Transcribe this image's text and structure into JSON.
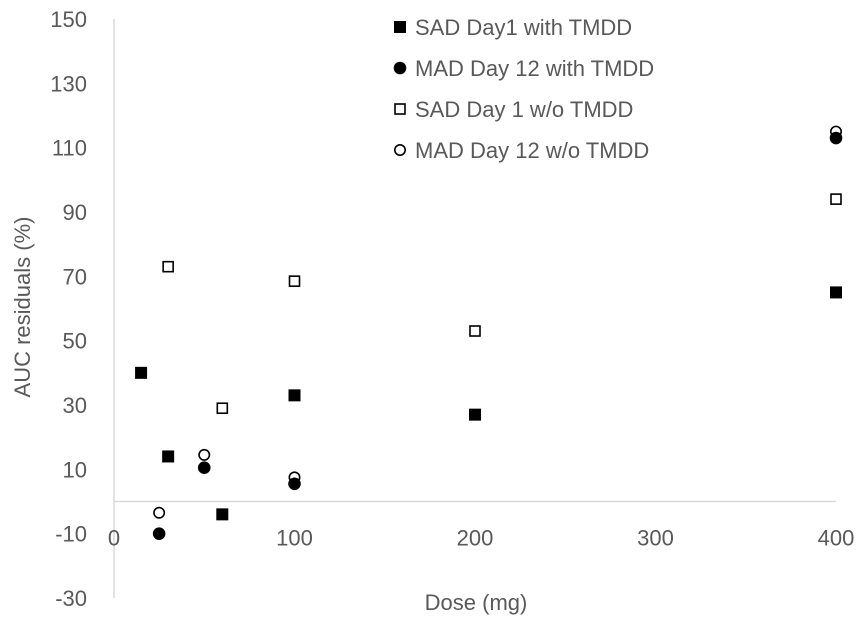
{
  "chart_data": {
    "type": "scatter",
    "title": "",
    "xlabel": "Dose (mg)",
    "ylabel": "AUC residuals (%)",
    "xlim": [
      0,
      400
    ],
    "ylim": [
      -30,
      150
    ],
    "x_ticks": [
      0,
      100,
      200,
      300,
      400
    ],
    "y_ticks": [
      -30,
      -10,
      10,
      30,
      50,
      70,
      90,
      110,
      130,
      150
    ],
    "grid": false,
    "legend_position": "top-right",
    "axis_color": "#d9d9d9",
    "text_color": "#595959",
    "marker_color": "#000000",
    "series": [
      {
        "name": "SAD Day1 with TMDD",
        "marker": "filled-square",
        "x": [
          15,
          30,
          60,
          100,
          200,
          400
        ],
        "y": [
          40,
          14,
          -4,
          33,
          27,
          65
        ]
      },
      {
        "name": "MAD Day 12 with TMDD",
        "marker": "filled-circle",
        "x": [
          25,
          50,
          100,
          400
        ],
        "y": [
          -10,
          10.5,
          5.5,
          113
        ]
      },
      {
        "name": "SAD Day 1 w/o TMDD",
        "marker": "open-square",
        "x": [
          30,
          60,
          100,
          200,
          400
        ],
        "y": [
          73,
          29,
          68.5,
          53,
          94
        ]
      },
      {
        "name": "MAD Day 12 w/o TMDD",
        "marker": "open-circle",
        "x": [
          25,
          50,
          100,
          400
        ],
        "y": [
          -3.5,
          14.5,
          7.5,
          115
        ]
      }
    ]
  }
}
